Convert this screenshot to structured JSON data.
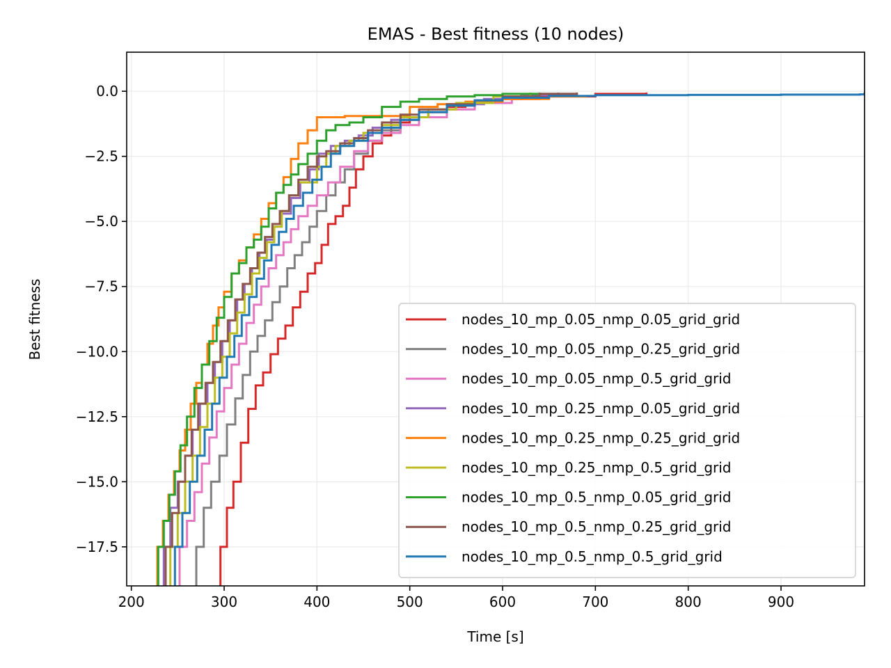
{
  "chart_data": {
    "type": "line",
    "title": "EMAS - Best fitness (10 nodes)",
    "xlabel": "Time [s]",
    "ylabel": "Best fitness",
    "xlim": [
      195,
      990
    ],
    "ylim": [
      -19.0,
      1.5
    ],
    "xticks": [
      200,
      300,
      400,
      500,
      600,
      700,
      800,
      900
    ],
    "yticks": [
      0.0,
      -2.5,
      -5.0,
      -7.5,
      -10.0,
      -12.5,
      -15.0,
      -17.5
    ],
    "xtick_labels": [
      "200",
      "300",
      "400",
      "500",
      "600",
      "700",
      "800",
      "900"
    ],
    "ytick_labels": [
      "0.0",
      "−2.5",
      "−5.0",
      "−7.5",
      "−10.0",
      "−12.5",
      "−15.0",
      "−17.5"
    ],
    "grid": true,
    "legend_position": "lower-right",
    "series": [
      {
        "name": "nodes_10_mp_0.05_nmp_0.05_grid_grid",
        "color": "#d62728",
        "x": [
          290,
          296,
          303,
          310,
          318,
          326,
          334,
          342,
          350,
          358,
          366,
          374,
          382,
          390,
          398,
          405,
          412,
          420,
          428,
          435,
          442,
          450,
          460,
          470,
          480,
          490,
          500,
          520,
          540,
          560,
          600,
          640,
          700,
          755
        ],
        "y": [
          -19.5,
          -17.5,
          -16.0,
          -15.0,
          -13.5,
          -12.2,
          -11.3,
          -10.8,
          -10.1,
          -9.5,
          -9.0,
          -8.3,
          -7.7,
          -7.0,
          -6.6,
          -5.9,
          -5.1,
          -4.8,
          -4.4,
          -3.7,
          -3.0,
          -2.5,
          -2.0,
          -1.7,
          -1.4,
          -1.2,
          -1.0,
          -0.8,
          -0.6,
          -0.45,
          -0.3,
          -0.2,
          -0.1,
          -0.05
        ]
      },
      {
        "name": "nodes_10_mp_0.05_nmp_0.25_grid_grid",
        "color": "#7f7f7f",
        "x": [
          262,
          270,
          278,
          286,
          295,
          303,
          312,
          320,
          328,
          336,
          344,
          352,
          360,
          368,
          376,
          384,
          392,
          400,
          410,
          420,
          430,
          440,
          455,
          470,
          490,
          510,
          540,
          570,
          600,
          640,
          680
        ],
        "y": [
          -19.5,
          -17.5,
          -16.0,
          -15.0,
          -14.0,
          -12.8,
          -11.8,
          -10.9,
          -10.0,
          -9.4,
          -8.8,
          -8.1,
          -7.5,
          -6.8,
          -6.3,
          -5.8,
          -5.2,
          -4.6,
          -4.0,
          -3.5,
          -3.0,
          -2.4,
          -1.9,
          -1.5,
          -1.1,
          -0.8,
          -0.55,
          -0.35,
          -0.2,
          -0.1,
          -0.05
        ]
      },
      {
        "name": "nodes_10_mp_0.05_nmp_0.5_grid_grid",
        "color": "#e377c2",
        "x": [
          245,
          252,
          260,
          268,
          276,
          284,
          292,
          300,
          308,
          316,
          324,
          332,
          340,
          348,
          356,
          364,
          372,
          380,
          390,
          400,
          412,
          425,
          440,
          455,
          470,
          490,
          510,
          540,
          570,
          610,
          650
        ],
        "y": [
          -19.5,
          -17.5,
          -16.5,
          -15.4,
          -14.3,
          -13.3,
          -12.3,
          -11.4,
          -10.5,
          -9.7,
          -8.9,
          -8.2,
          -7.5,
          -6.8,
          -6.3,
          -5.8,
          -5.3,
          -4.8,
          -4.4,
          -4.0,
          -3.5,
          -2.9,
          -2.3,
          -1.9,
          -1.6,
          -1.3,
          -1.0,
          -0.7,
          -0.45,
          -0.25,
          -0.1
        ]
      },
      {
        "name": "nodes_10_mp_0.25_nmp_0.05_grid_grid",
        "color": "#9467bd",
        "x": [
          228,
          235,
          242,
          250,
          258,
          266,
          274,
          282,
          290,
          298,
          306,
          314,
          322,
          330,
          338,
          346,
          354,
          362,
          372,
          382,
          392,
          402,
          415,
          430,
          445,
          460,
          480,
          510,
          540,
          580,
          620,
          660
        ],
        "y": [
          -19.5,
          -17.5,
          -16.0,
          -15.0,
          -14.0,
          -13.0,
          -12.0,
          -11.2,
          -10.4,
          -9.6,
          -8.8,
          -8.0,
          -7.4,
          -6.8,
          -6.2,
          -5.7,
          -5.2,
          -4.7,
          -4.1,
          -3.5,
          -3.0,
          -2.4,
          -2.1,
          -1.9,
          -1.7,
          -1.4,
          -1.1,
          -0.8,
          -0.5,
          -0.3,
          -0.15,
          -0.05
        ]
      },
      {
        "name": "nodes_10_mp_0.25_nmp_0.25_grid_grid",
        "color": "#ff7f0e",
        "x": [
          222,
          228,
          234,
          240,
          246,
          252,
          258,
          264,
          270,
          276,
          282,
          288,
          294,
          300,
          308,
          316,
          324,
          332,
          340,
          348,
          356,
          364,
          372,
          380,
          390,
          400,
          430,
          470,
          500,
          530,
          560,
          600,
          650,
          690
        ],
        "y": [
          -19.5,
          -17.5,
          -16.5,
          -15.5,
          -14.6,
          -13.8,
          -13.0,
          -12.0,
          -11.2,
          -10.5,
          -9.7,
          -9.0,
          -8.3,
          -7.7,
          -7.0,
          -6.5,
          -6.0,
          -5.5,
          -4.9,
          -4.3,
          -3.9,
          -3.3,
          -2.6,
          -2.0,
          -1.5,
          -1.0,
          -0.95,
          -0.95,
          -0.6,
          -0.5,
          -0.4,
          -0.3,
          -0.2,
          -0.15
        ]
      },
      {
        "name": "nodes_10_mp_0.25_nmp_0.5_grid_grid",
        "color": "#bcbd22",
        "x": [
          235,
          242,
          250,
          258,
          266,
          274,
          282,
          290,
          298,
          306,
          314,
          322,
          330,
          338,
          346,
          354,
          362,
          370,
          380,
          390,
          400,
          410,
          420,
          435,
          450,
          470,
          490,
          520,
          550,
          590,
          630
        ],
        "y": [
          -19.5,
          -17.5,
          -16.2,
          -15.0,
          -14.0,
          -12.9,
          -12.0,
          -11.0,
          -10.2,
          -9.3,
          -8.5,
          -7.8,
          -7.0,
          -6.4,
          -5.8,
          -5.2,
          -4.6,
          -4.0,
          -3.5,
          -3.5,
          -2.9,
          -2.4,
          -2.1,
          -1.9,
          -1.6,
          -1.3,
          -1.0,
          -0.7,
          -0.45,
          -0.2,
          -0.05
        ]
      },
      {
        "name": "nodes_10_mp_0.5_nmp_0.05_grid_grid",
        "color": "#2ca02c",
        "x": [
          223,
          229,
          235,
          241,
          247,
          253,
          260,
          268,
          276,
          284,
          292,
          300,
          308,
          316,
          324,
          332,
          340,
          348,
          356,
          364,
          372,
          380,
          390,
          400,
          410,
          420,
          435,
          450,
          470,
          490,
          510,
          540,
          570,
          600,
          640
        ],
        "y": [
          -19.5,
          -17.5,
          -16.5,
          -15.5,
          -14.6,
          -13.6,
          -12.5,
          -11.4,
          -10.5,
          -9.6,
          -8.7,
          -7.9,
          -7.0,
          -6.6,
          -6.0,
          -5.7,
          -5.2,
          -4.5,
          -3.9,
          -3.6,
          -3.2,
          -2.8,
          -2.4,
          -1.9,
          -1.5,
          -1.3,
          -1.2,
          -1.0,
          -0.6,
          -0.4,
          -0.3,
          -0.2,
          -0.15,
          -0.1,
          -0.05
        ]
      },
      {
        "name": "nodes_10_mp_0.5_nmp_0.25_grid_grid",
        "color": "#8c564b",
        "x": [
          230,
          237,
          244,
          251,
          258,
          265,
          272,
          280,
          288,
          296,
          304,
          312,
          320,
          328,
          336,
          344,
          352,
          360,
          370,
          380,
          390,
          400,
          410,
          425,
          440,
          455,
          470,
          490,
          510,
          540,
          570,
          600,
          640,
          680
        ],
        "y": [
          -19.5,
          -17.5,
          -16.2,
          -15.0,
          -14.0,
          -13.0,
          -12.0,
          -11.2,
          -10.4,
          -9.6,
          -8.8,
          -8.0,
          -7.4,
          -6.8,
          -6.2,
          -5.6,
          -5.1,
          -4.6,
          -4.0,
          -3.4,
          -2.9,
          -2.5,
          -2.3,
          -2.0,
          -1.8,
          -1.5,
          -1.2,
          -0.9,
          -0.7,
          -0.5,
          -0.35,
          -0.2,
          -0.1,
          -0.05
        ]
      },
      {
        "name": "nodes_10_mp_0.5_nmp_0.5_grid_grid",
        "color": "#1f77b4",
        "x": [
          240,
          247,
          255,
          263,
          271,
          279,
          287,
          295,
          303,
          311,
          319,
          327,
          335,
          343,
          351,
          359,
          367,
          375,
          385,
          395,
          405,
          415,
          425,
          440,
          455,
          470,
          490,
          510,
          540,
          570,
          600,
          650,
          700,
          800,
          900,
          985,
          990
        ],
        "y": [
          -19.5,
          -17.5,
          -16.2,
          -15.0,
          -14.0,
          -13.0,
          -12.0,
          -11.0,
          -10.2,
          -9.4,
          -8.6,
          -7.9,
          -7.2,
          -6.5,
          -5.9,
          -5.4,
          -4.9,
          -4.4,
          -3.9,
          -3.4,
          -2.9,
          -2.4,
          -2.1,
          -1.9,
          -1.6,
          -1.4,
          -1.1,
          -0.8,
          -0.55,
          -0.35,
          -0.25,
          -0.18,
          -0.15,
          -0.14,
          -0.13,
          -0.12,
          -0.05
        ]
      }
    ]
  }
}
